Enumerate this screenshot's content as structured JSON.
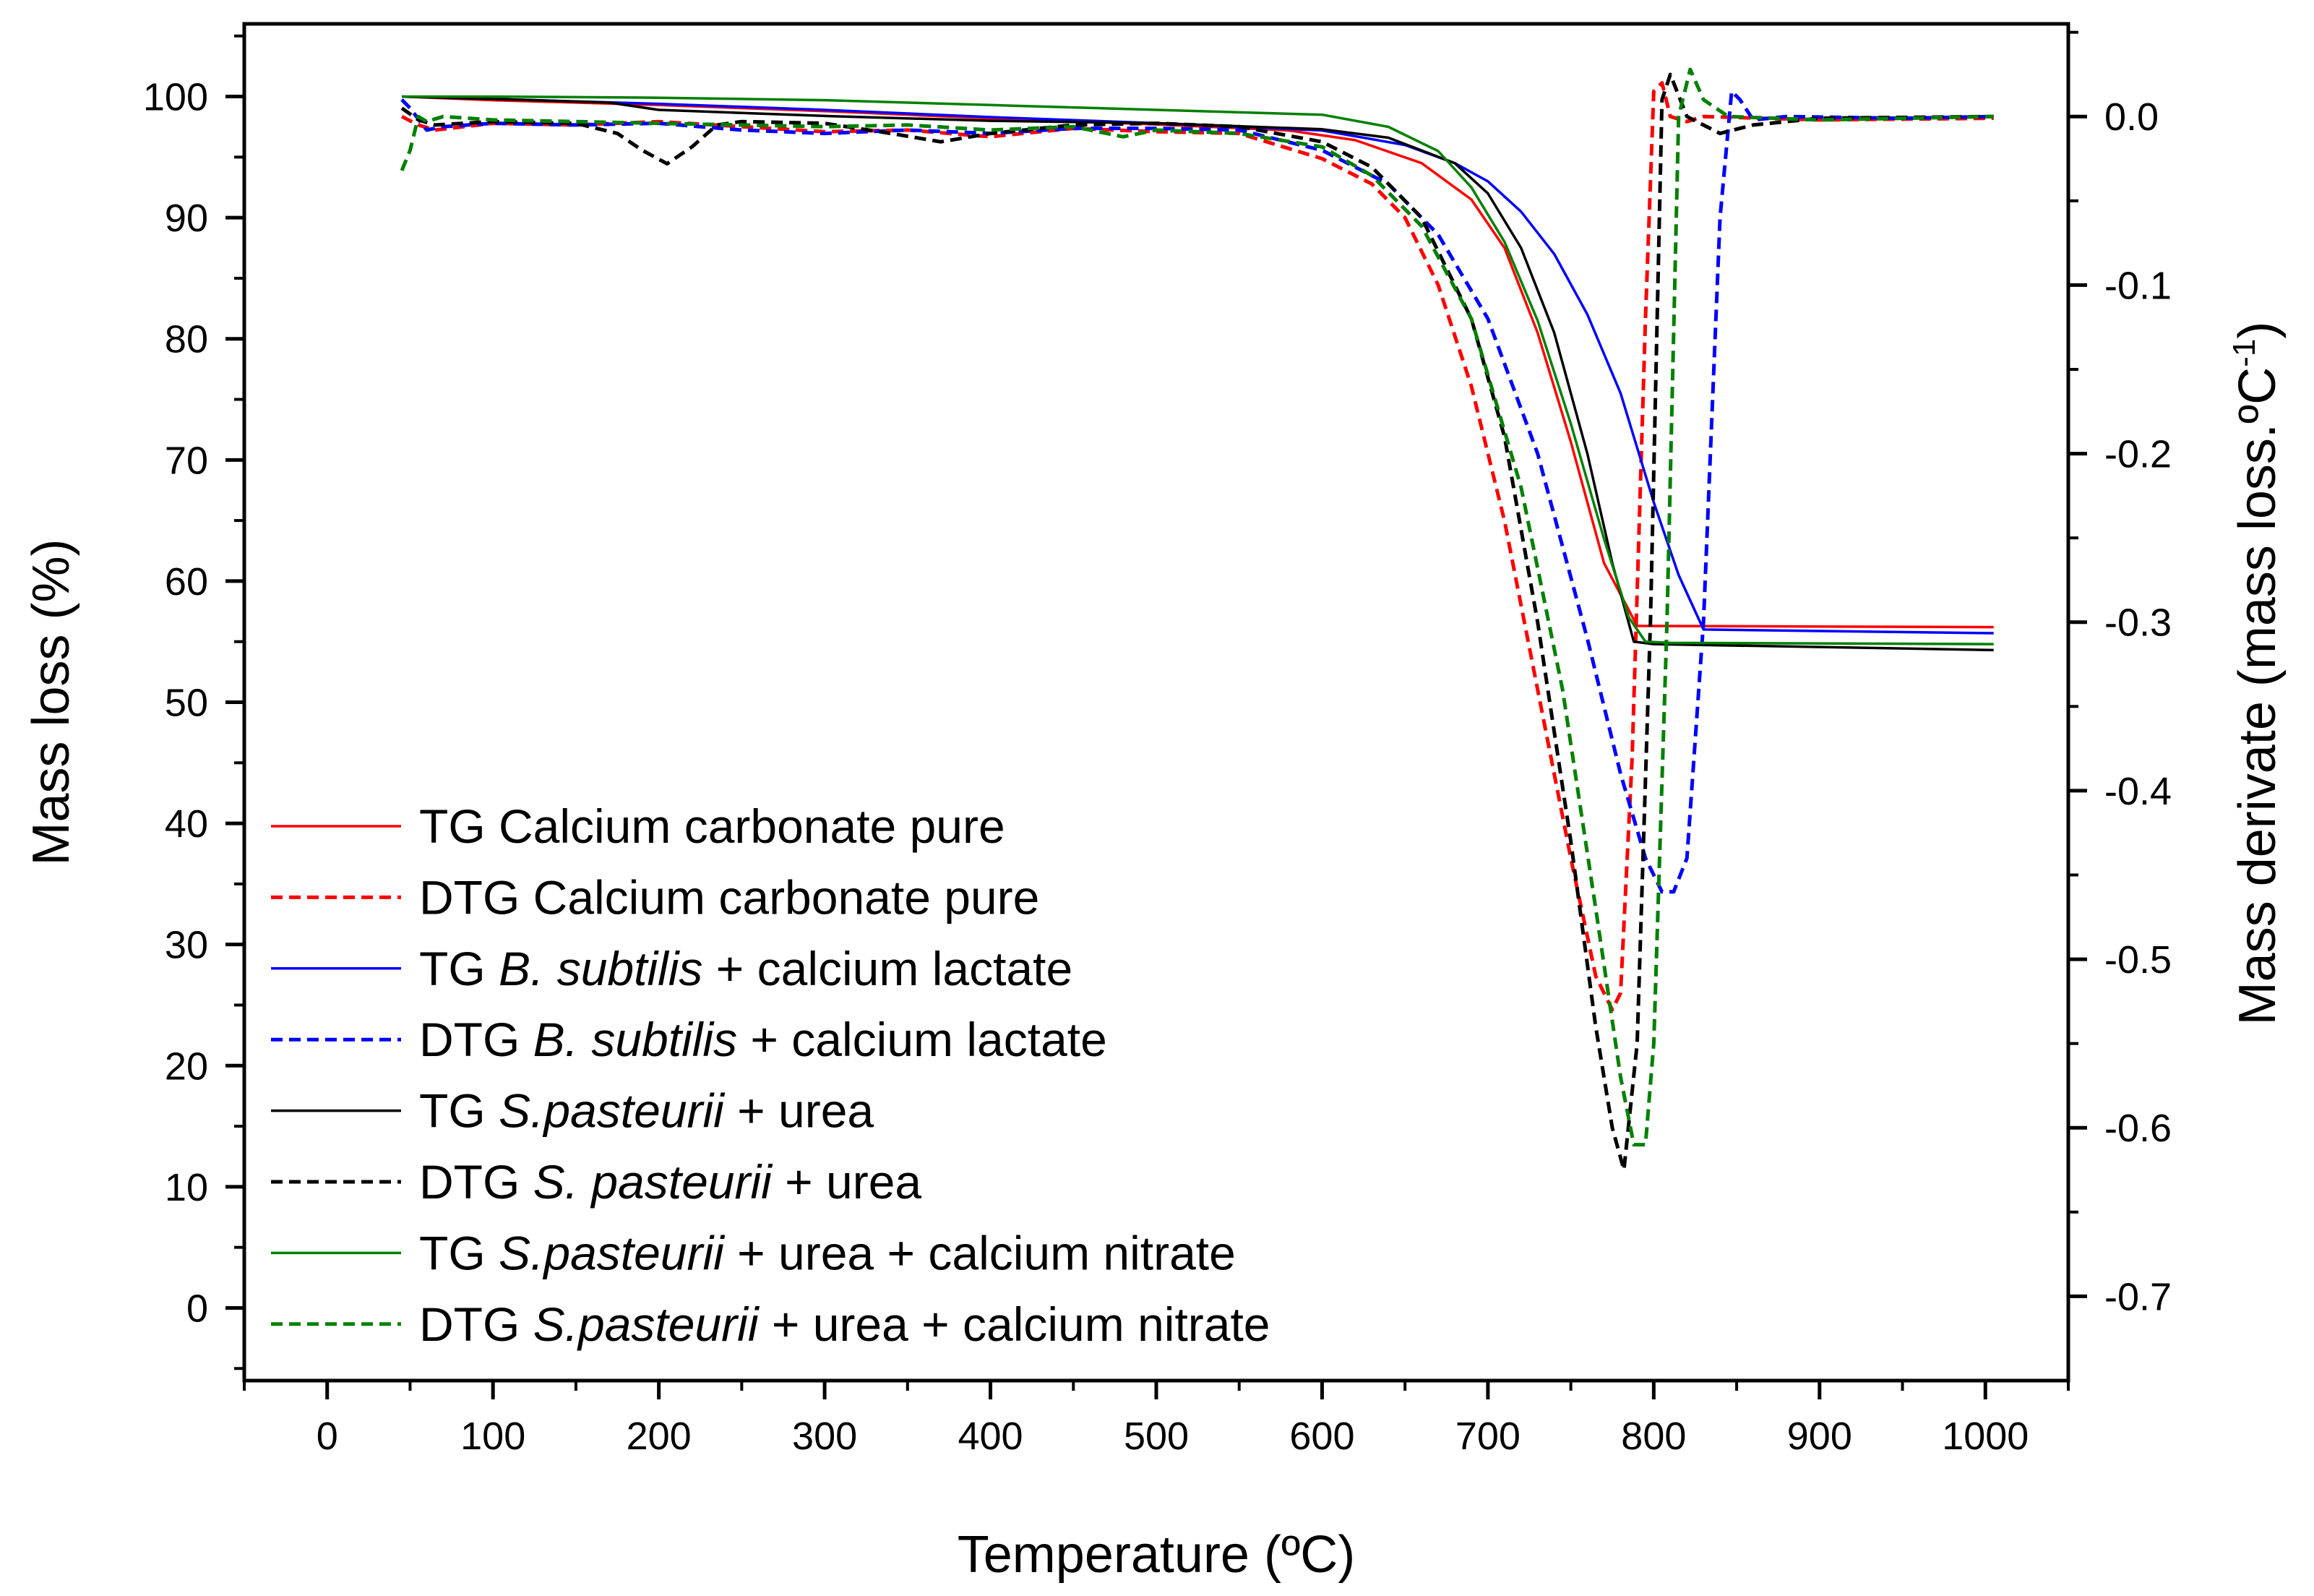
{
  "chart_data": {
    "type": "line",
    "xlabel": "Temperature (ºC)",
    "ylabel_left": "Mass loss (%)",
    "ylabel_right": "Mass derivate (mass loss.ºC",
    "ylabel_right_sup": "-1",
    "ylabel_right_close": ")",
    "xlim": [
      -50,
      1050
    ],
    "xticks": [
      0,
      100,
      200,
      300,
      400,
      500,
      600,
      700,
      800,
      900,
      1000
    ],
    "xtick_labels": [
      "0",
      "100",
      "200",
      "300",
      "400",
      "500",
      "600",
      "700",
      "800",
      "900",
      "1000"
    ],
    "ylim_left": [
      -6,
      106
    ],
    "yticks_left": [
      0,
      10,
      20,
      30,
      40,
      50,
      60,
      70,
      80,
      90,
      100
    ],
    "ytick_labels_left": [
      "0",
      "10",
      "20",
      "30",
      "40",
      "50",
      "60",
      "70",
      "80",
      "90",
      "100"
    ],
    "ylim_right": [
      -0.75,
      0.055
    ],
    "yticks_right": [
      0.0,
      -0.1,
      -0.2,
      -0.3,
      -0.4,
      -0.5,
      -0.6,
      -0.7
    ],
    "ytick_labels_right": [
      "0.0",
      "-0.1",
      "-0.2",
      "-0.3",
      "-0.4",
      "-0.5",
      "-0.6",
      "-0.7"
    ],
    "legend_position": "bottom-left",
    "series": [
      {
        "name": "TG Calcium carbonate pure",
        "legend_parts": [
          {
            "t": "TG Calcium carbonate pure",
            "i": false
          }
        ],
        "axis": "left",
        "color": "#ff0000",
        "dash": "solid",
        "x": [
          45,
          100,
          200,
          300,
          400,
          500,
          580,
          620,
          660,
          690,
          710,
          730,
          750,
          770,
          790,
          1005
        ],
        "y": [
          100,
          99.7,
          99.3,
          98.8,
          98.2,
          97.7,
          97.2,
          96.4,
          94.5,
          91.5,
          87.5,
          80.5,
          71.5,
          61.5,
          56.3,
          56.2
        ]
      },
      {
        "name": "DTG Calcium carbonate pure",
        "legend_parts": [
          {
            "t": "DTG Calcium carbonate pure",
            "i": false
          }
        ],
        "axis": "right",
        "color": "#ff0000",
        "dash": "dashed",
        "x": [
          45,
          55,
          65,
          100,
          150,
          200,
          250,
          300,
          350,
          400,
          450,
          500,
          550,
          600,
          630,
          650,
          670,
          690,
          710,
          730,
          750,
          765,
          775,
          780,
          787,
          795,
          800,
          805,
          810,
          820,
          830,
          900,
          1005
        ],
        "y": [
          0.0,
          -0.005,
          -0.008,
          -0.004,
          -0.005,
          -0.003,
          -0.006,
          -0.009,
          -0.008,
          -0.012,
          -0.007,
          -0.009,
          -0.01,
          -0.025,
          -0.04,
          -0.06,
          -0.1,
          -0.16,
          -0.24,
          -0.34,
          -0.44,
          -0.51,
          -0.53,
          -0.52,
          -0.38,
          -0.12,
          0.015,
          0.02,
          0.0,
          -0.003,
          0.0,
          -0.002,
          -0.001
        ]
      },
      {
        "name": "TG B. subtilis + calcium lactate",
        "legend_parts": [
          {
            "t": "TG ",
            "i": false
          },
          {
            "t": "B. subtilis",
            "i": true
          },
          {
            "t": " + calcium lactate",
            "i": false
          }
        ],
        "axis": "left",
        "color": "#0000ff",
        "dash": "solid",
        "x": [
          45,
          100,
          200,
          300,
          400,
          500,
          600,
          650,
          680,
          700,
          720,
          740,
          760,
          780,
          800,
          815,
          830,
          1005
        ],
        "y": [
          100,
          99.8,
          99.4,
          98.9,
          98.3,
          97.8,
          97.2,
          96.0,
          94.5,
          93.0,
          90.5,
          87.0,
          82.0,
          75.5,
          66.5,
          60.5,
          56.0,
          55.7
        ]
      },
      {
        "name": "DTG B. subtilis + calcium lactate",
        "legend_parts": [
          {
            "t": "DTG ",
            "i": false
          },
          {
            "t": "B. subtilis",
            "i": true
          },
          {
            "t": " + calcium lactate",
            "i": false
          }
        ],
        "axis": "right",
        "color": "#0000ff",
        "dash": "dashed",
        "x": [
          45,
          50,
          60,
          70,
          100,
          150,
          200,
          250,
          300,
          350,
          400,
          450,
          500,
          550,
          600,
          640,
          670,
          700,
          730,
          760,
          780,
          795,
          805,
          812,
          820,
          830,
          840,
          847,
          852,
          860,
          880,
          950,
          1005
        ],
        "y": [
          0.01,
          0.005,
          -0.008,
          -0.006,
          -0.004,
          -0.005,
          -0.004,
          -0.008,
          -0.01,
          -0.008,
          -0.01,
          -0.007,
          -0.007,
          -0.008,
          -0.02,
          -0.04,
          -0.07,
          -0.12,
          -0.2,
          -0.31,
          -0.39,
          -0.44,
          -0.46,
          -0.46,
          -0.44,
          -0.3,
          -0.06,
          0.015,
          0.01,
          -0.002,
          0.0,
          -0.001,
          0.0
        ]
      },
      {
        "name": "TG S.pasteurii + urea",
        "legend_parts": [
          {
            "t": "TG ",
            "i": false
          },
          {
            "t": "S.pasteurii",
            "i": true
          },
          {
            "t": " + urea",
            "i": false
          }
        ],
        "axis": "left",
        "color": "#000000",
        "dash": "solid",
        "x": [
          45,
          100,
          170,
          200,
          300,
          400,
          500,
          600,
          640,
          680,
          700,
          720,
          740,
          760,
          775,
          788,
          800,
          1005
        ],
        "y": [
          100,
          99.8,
          99.5,
          98.9,
          98.4,
          98.0,
          97.8,
          97.3,
          96.6,
          94.5,
          92.0,
          87.5,
          80.5,
          70.5,
          61.5,
          55.0,
          54.8,
          54.3
        ]
      },
      {
        "name": "DTG S. pasteurii + urea",
        "legend_parts": [
          {
            "t": "DTG ",
            "i": false
          },
          {
            "t": "S. pasteurii",
            "i": true
          },
          {
            "t": " + urea",
            "i": false
          }
        ],
        "axis": "right",
        "color": "#000000",
        "dash": "dashed",
        "x": [
          45,
          55,
          65,
          100,
          150,
          175,
          190,
          205,
          220,
          235,
          250,
          300,
          340,
          370,
          400,
          450,
          500,
          550,
          600,
          630,
          660,
          690,
          710,
          730,
          750,
          765,
          775,
          782,
          790,
          798,
          805,
          810,
          820,
          840,
          860,
          900,
          1005
        ],
        "y": [
          0.005,
          -0.002,
          -0.005,
          -0.003,
          -0.004,
          -0.01,
          -0.02,
          -0.028,
          -0.018,
          -0.005,
          -0.003,
          -0.004,
          -0.01,
          -0.015,
          -0.01,
          -0.005,
          -0.004,
          -0.006,
          -0.015,
          -0.03,
          -0.06,
          -0.12,
          -0.19,
          -0.3,
          -0.43,
          -0.54,
          -0.6,
          -0.625,
          -0.55,
          -0.3,
          0.01,
          0.025,
          0.0,
          -0.01,
          -0.005,
          -0.001,
          0.0
        ]
      },
      {
        "name": "TG S.pasteurii + urea + calcium nitrate",
        "legend_parts": [
          {
            "t": "TG ",
            "i": false
          },
          {
            "t": "S.pasteurii",
            "i": true
          },
          {
            "t": " + urea + calcium nitrate",
            "i": false
          }
        ],
        "axis": "left",
        "color": "#008000",
        "dash": "solid",
        "x": [
          45,
          100,
          200,
          300,
          400,
          500,
          600,
          640,
          670,
          690,
          710,
          730,
          750,
          770,
          785,
          795,
          810,
          1005
        ],
        "y": [
          100,
          100,
          99.9,
          99.7,
          99.3,
          98.9,
          98.5,
          97.5,
          95.5,
          92.5,
          88.0,
          81.5,
          73.0,
          63.5,
          57.0,
          55.0,
          54.9,
          54.8
        ]
      },
      {
        "name": "DTG S.pasteurii + urea + calcium nitrate",
        "legend_parts": [
          {
            "t": "DTG ",
            "i": false
          },
          {
            "t": "S.pasteurii",
            "i": true
          },
          {
            "t": " + urea + calcium nitrate",
            "i": false
          }
        ],
        "axis": "right",
        "color": "#008000",
        "dash": "dashed",
        "x": [
          45,
          50,
          55,
          60,
          70,
          100,
          150,
          200,
          250,
          300,
          350,
          400,
          450,
          480,
          500,
          550,
          600,
          630,
          660,
          690,
          720,
          745,
          765,
          780,
          788,
          795,
          800,
          808,
          815,
          822,
          830,
          845,
          900,
          1005
        ],
        "y": [
          -0.032,
          -0.02,
          0.0,
          -0.003,
          0.0,
          -0.002,
          -0.003,
          -0.004,
          -0.005,
          -0.006,
          -0.005,
          -0.008,
          -0.006,
          -0.012,
          -0.008,
          -0.01,
          -0.018,
          -0.035,
          -0.065,
          -0.12,
          -0.22,
          -0.34,
          -0.47,
          -0.57,
          -0.61,
          -0.61,
          -0.55,
          -0.3,
          0.0,
          0.028,
          0.01,
          0.0,
          -0.002,
          0.0
        ]
      }
    ]
  }
}
